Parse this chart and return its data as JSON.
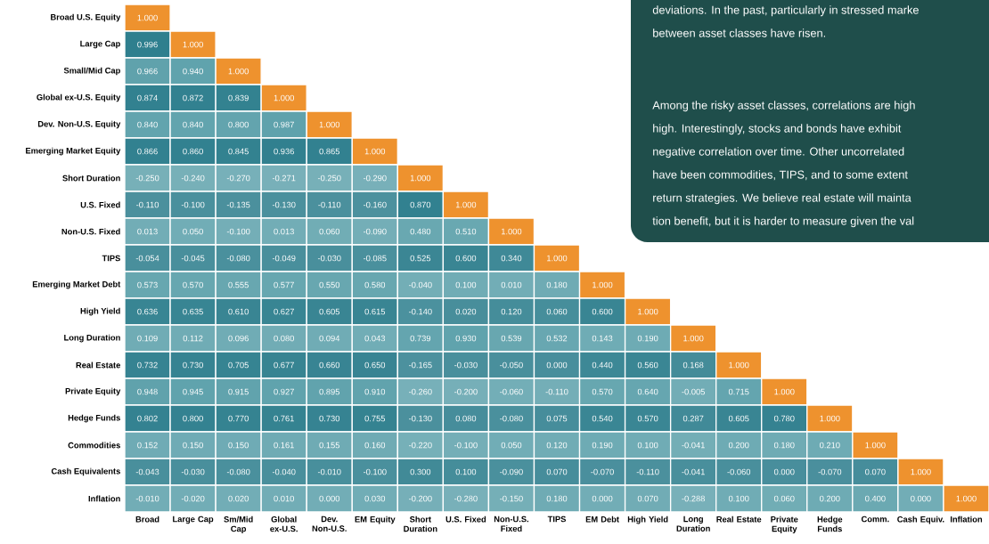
{
  "chart_data": {
    "type": "heatmap",
    "categories": [
      "Broad",
      "Large Cap",
      "Sm/Mid Cap",
      "Global ex-U.S.",
      "Dev. Non-U.S.",
      "EM Equity",
      "Short Duration",
      "U.S. Fixed",
      "Non-U.S. Fixed",
      "TIPS",
      "EM Debt",
      "High Yield",
      "Long Duration",
      "Real Estate",
      "Private Equity",
      "Hedge Funds",
      "Comm.",
      "Cash Equiv.",
      "Inflation"
    ],
    "y_categories": [
      "Broad U.S. Equity",
      "Large Cap",
      "Small/Mid Cap",
      "Global ex-U.S. Equity",
      "Dev. Non-U.S. Equity",
      "Emerging Market Equity",
      "Short Duration",
      "U.S. Fixed",
      "Non-U.S. Fixed",
      "TIPS",
      "Emerging Market Debt",
      "High Yield",
      "Long Duration",
      "Real Estate",
      "Private Equity",
      "Hedge Funds",
      "Commodities",
      "Cash Equivalents",
      "Inflation"
    ],
    "cells": [
      [
        1.0,
        null,
        null,
        null,
        null,
        null,
        null,
        null,
        null,
        null,
        null,
        null,
        null,
        null,
        null,
        null,
        null,
        null,
        null
      ],
      [
        0.996,
        1.0,
        null,
        null,
        null,
        null,
        null,
        null,
        null,
        null,
        null,
        null,
        null,
        null,
        null,
        null,
        null,
        null,
        null
      ],
      [
        0.966,
        0.94,
        1.0,
        null,
        null,
        null,
        null,
        null,
        null,
        null,
        null,
        null,
        null,
        null,
        null,
        null,
        null,
        null,
        null
      ],
      [
        0.874,
        0.872,
        0.839,
        1.0,
        null,
        null,
        null,
        null,
        null,
        null,
        null,
        null,
        null,
        null,
        null,
        null,
        null,
        null,
        null
      ],
      [
        0.84,
        0.84,
        0.8,
        0.987,
        1.0,
        null,
        null,
        null,
        null,
        null,
        null,
        null,
        null,
        null,
        null,
        null,
        null,
        null,
        null
      ],
      [
        0.866,
        0.86,
        0.845,
        0.936,
        0.865,
        1.0,
        null,
        null,
        null,
        null,
        null,
        null,
        null,
        null,
        null,
        null,
        null,
        null,
        null
      ],
      [
        -0.25,
        -0.24,
        -0.27,
        -0.271,
        -0.25,
        -0.29,
        1.0,
        null,
        null,
        null,
        null,
        null,
        null,
        null,
        null,
        null,
        null,
        null,
        null
      ],
      [
        -0.11,
        -0.1,
        -0.135,
        -0.13,
        -0.11,
        -0.16,
        0.87,
        1.0,
        null,
        null,
        null,
        null,
        null,
        null,
        null,
        null,
        null,
        null,
        null
      ],
      [
        0.013,
        0.05,
        -0.1,
        0.013,
        0.06,
        -0.09,
        0.48,
        0.51,
        1.0,
        null,
        null,
        null,
        null,
        null,
        null,
        null,
        null,
        null,
        null
      ],
      [
        -0.054,
        -0.045,
        -0.08,
        -0.049,
        -0.03,
        -0.085,
        0.525,
        0.6,
        0.34,
        1.0,
        null,
        null,
        null,
        null,
        null,
        null,
        null,
        null,
        null
      ],
      [
        0.573,
        0.57,
        0.555,
        0.577,
        0.55,
        0.58,
        -0.04,
        0.1,
        0.01,
        0.18,
        1.0,
        null,
        null,
        null,
        null,
        null,
        null,
        null,
        null
      ],
      [
        0.636,
        0.635,
        0.61,
        0.627,
        0.605,
        0.615,
        -0.14,
        0.02,
        0.12,
        0.06,
        0.6,
        1.0,
        null,
        null,
        null,
        null,
        null,
        null,
        null
      ],
      [
        0.109,
        0.112,
        0.096,
        0.08,
        0.094,
        0.043,
        0.739,
        0.93,
        0.539,
        0.532,
        0.143,
        0.19,
        1.0,
        null,
        null,
        null,
        null,
        null,
        null
      ],
      [
        0.732,
        0.73,
        0.705,
        0.677,
        0.66,
        0.65,
        -0.165,
        -0.03,
        -0.05,
        0.0,
        0.44,
        0.56,
        0.168,
        1.0,
        null,
        null,
        null,
        null,
        null
      ],
      [
        0.948,
        0.945,
        0.915,
        0.927,
        0.895,
        0.91,
        -0.26,
        -0.2,
        -0.06,
        -0.11,
        0.57,
        0.64,
        -0.005,
        0.715,
        1.0,
        null,
        null,
        null,
        null
      ],
      [
        0.802,
        0.8,
        0.77,
        0.761,
        0.73,
        0.755,
        -0.13,
        0.08,
        -0.08,
        0.075,
        0.54,
        0.57,
        0.287,
        0.605,
        0.78,
        1.0,
        null,
        null,
        null
      ],
      [
        0.152,
        0.15,
        0.15,
        0.161,
        0.155,
        0.16,
        -0.22,
        -0.1,
        0.05,
        0.12,
        0.19,
        0.1,
        -0.041,
        0.2,
        0.18,
        0.21,
        1.0,
        null,
        null
      ],
      [
        -0.043,
        -0.03,
        -0.08,
        -0.04,
        -0.01,
        -0.1,
        0.3,
        0.1,
        -0.09,
        0.07,
        -0.07,
        -0.11,
        -0.041,
        -0.06,
        0.0,
        -0.07,
        0.07,
        1.0,
        null
      ],
      [
        -0.01,
        -0.02,
        0.02,
        0.01,
        0.0,
        0.03,
        -0.2,
        -0.28,
        -0.15,
        0.18,
        0.0,
        0.07,
        -0.288,
        0.1,
        0.06,
        0.2,
        0.4,
        0.0,
        1.0
      ]
    ],
    "cell_labels": [
      [
        "1.000",
        null,
        null,
        null,
        null,
        null,
        null,
        null,
        null,
        null,
        null,
        null,
        null,
        null,
        null,
        null,
        null,
        null,
        null
      ],
      [
        "0.996",
        "1.000",
        null,
        null,
        null,
        null,
        null,
        null,
        null,
        null,
        null,
        null,
        null,
        null,
        null,
        null,
        null,
        null,
        null
      ],
      [
        "0.966",
        "0.940",
        "1.000",
        null,
        null,
        null,
        null,
        null,
        null,
        null,
        null,
        null,
        null,
        null,
        null,
        null,
        null,
        null,
        null
      ],
      [
        "0.874",
        "0.872",
        "0.839",
        "1.000",
        null,
        null,
        null,
        null,
        null,
        null,
        null,
        null,
        null,
        null,
        null,
        null,
        null,
        null,
        null
      ],
      [
        "0.840",
        "0.840",
        "0.800",
        "0.987",
        "1.000",
        null,
        null,
        null,
        null,
        null,
        null,
        null,
        null,
        null,
        null,
        null,
        null,
        null,
        null
      ],
      [
        "0.866",
        "0.860",
        "0.845",
        "0.936",
        "0.865",
        "1.000",
        null,
        null,
        null,
        null,
        null,
        null,
        null,
        null,
        null,
        null,
        null,
        null,
        null
      ],
      [
        "-0.250",
        "-0.240",
        "-0.270",
        "-0.271",
        "-0.250",
        "-0.290",
        "1.000",
        null,
        null,
        null,
        null,
        null,
        null,
        null,
        null,
        null,
        null,
        null,
        null
      ],
      [
        "-0.110",
        "-0.100",
        "-0.135",
        "-0.130",
        "-0.110",
        "-0.160",
        "0.870",
        "1.000",
        null,
        null,
        null,
        null,
        null,
        null,
        null,
        null,
        null,
        null,
        null
      ],
      [
        "0.013",
        "0.050",
        "-0.100",
        "0.013",
        "0.060",
        "-0.090",
        "0.480",
        "0.510",
        "1.000",
        null,
        null,
        null,
        null,
        null,
        null,
        null,
        null,
        null,
        null
      ],
      [
        "-0.054",
        "-0.045",
        "-0.080",
        "-0.049",
        "-0.030",
        "-0.085",
        "0.525",
        "0.600",
        "0.340",
        "1.000",
        null,
        null,
        null,
        null,
        null,
        null,
        null,
        null,
        null
      ],
      [
        "0.573",
        "0.570",
        "0.555",
        "0.577",
        "0.550",
        "0.580",
        "-0.040",
        "0.100",
        "0.010",
        "0.180",
        "1.000",
        null,
        null,
        null,
        null,
        null,
        null,
        null,
        null
      ],
      [
        "0.636",
        "0.635",
        "0.610",
        "0.627",
        "0.605",
        "0.615",
        "-0.140",
        "0.020",
        "0.120",
        "0.060",
        "0.600",
        "1.000",
        null,
        null,
        null,
        null,
        null,
        null,
        null
      ],
      [
        "0.109",
        "0.112",
        "0.096",
        "0.080",
        "0.094",
        "0.043",
        "0.739",
        "0.930",
        "0.539",
        "0.532",
        "0.143",
        "0.190",
        "1.000",
        null,
        null,
        null,
        null,
        null,
        null
      ],
      [
        "0.732",
        "0.730",
        "0.705",
        "0.677",
        "0.660",
        "0.650",
        "-0.165",
        "-0.030",
        "-0.050",
        "0.000",
        "0.440",
        "0.560",
        "0.168",
        "1.000",
        null,
        null,
        null,
        null,
        null
      ],
      [
        "0.948",
        "0.945",
        "0.915",
        "0.927",
        "0.895",
        "0.910",
        "-0.260",
        "-0.200",
        "-0.060",
        "-0.110",
        "0.570",
        "0.640",
        "-0.005",
        "0.715",
        "1.000",
        null,
        null,
        null,
        null
      ],
      [
        "0.802",
        "0.800",
        "0.770",
        "0.761",
        "0.730",
        "0.755",
        "-0.130",
        "0.080",
        "-0.080",
        "0.075",
        "0.540",
        "0.570",
        "0.287",
        "0.605",
        "0.780",
        "1.000",
        null,
        null,
        null
      ],
      [
        "0.152",
        "0.150",
        "0.150",
        "0.161",
        "0.155",
        "0.160",
        "-0.220",
        "-0.100",
        "0.050",
        "0.120",
        "0.190",
        "0.100",
        "-0.041",
        "0.200",
        "0.180",
        "0.210",
        "1.000",
        null,
        null
      ],
      [
        "-0.043",
        "-0.030",
        "-0.080",
        "-0.040",
        "-0.010",
        "-0.100",
        "0.300",
        "0.100",
        "-0.090",
        "0.070",
        "-0.070",
        "-0.110",
        "-0.041",
        "-0.060",
        "0.000",
        "-0.070",
        "0.070",
        "1.000",
        null
      ],
      [
        "-0.010",
        "-0.020",
        "0.020",
        "0.010",
        "0.000",
        "0.030",
        "-0.200",
        "-0.280",
        "-0.150",
        "0.180",
        "0.000",
        "0.070",
        "-0.288",
        "0.100",
        "0.060",
        "0.200",
        "0.400",
        "0.000",
        "1.000"
      ]
    ],
    "colors": [
      "#ee922e",
      "#2f7f8e",
      "#5fa2ac"
    ],
    "annotations": [
      "deviations. In the past, particularly in stressed marke",
      "between asset classes have risen.",
      "Among the risky asset classes, correlations are high",
      "high. Interestingly, stocks and bonds have exhibit",
      "negative correlation over time. Other uncorrelated",
      "have been commodities, TIPS, and to some extent",
      "return strategies. We believe real estate will mainta",
      "tion benefit, but it is harder to measure given the val"
    ]
  }
}
